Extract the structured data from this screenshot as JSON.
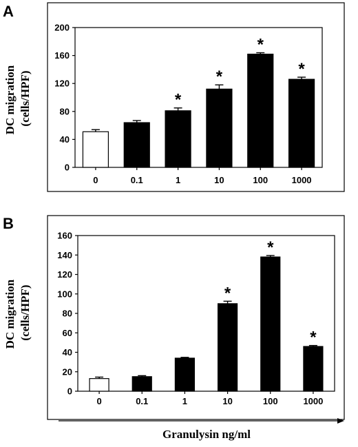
{
  "chart_data": [
    {
      "panel_label": "A",
      "type": "bar",
      "categories": [
        "0",
        "0.1",
        "1",
        "10",
        "100",
        "1000"
      ],
      "values": [
        51,
        64,
        81,
        112,
        162,
        126
      ],
      "errors": [
        3,
        3,
        4,
        6,
        2,
        3
      ],
      "significant": [
        false,
        false,
        true,
        true,
        true,
        true
      ],
      "significance_marker": "*",
      "bar_colors": [
        "#ffffff",
        "#000000",
        "#000000",
        "#000000",
        "#000000",
        "#000000"
      ],
      "ylabel_line1": "DC migration",
      "ylabel_line2": "(cells/HPF)",
      "ylim": [
        0,
        200
      ],
      "yticks": [
        "0",
        "40",
        "80",
        "120",
        "160",
        "200"
      ],
      "grid": false
    },
    {
      "panel_label": "B",
      "type": "bar",
      "categories": [
        "0",
        "0.1",
        "1",
        "10",
        "100",
        "1000"
      ],
      "values": [
        13,
        15,
        34,
        90,
        138,
        46
      ],
      "errors": [
        1.5,
        1,
        0.8,
        2.5,
        1.5,
        1
      ],
      "significant": [
        false,
        false,
        false,
        true,
        true,
        true
      ],
      "significance_marker": "*",
      "bar_colors": [
        "#ffffff",
        "#000000",
        "#000000",
        "#000000",
        "#000000",
        "#000000"
      ],
      "ylabel_line1": "DC migration",
      "ylabel_line2": "(cells/HPF)",
      "ylim": [
        0,
        160
      ],
      "yticks": [
        "0",
        "20",
        "40",
        "60",
        "80",
        "100",
        "120",
        "140",
        "160"
      ],
      "xlabel": "Granulysin ng/ml",
      "grid": false
    }
  ]
}
